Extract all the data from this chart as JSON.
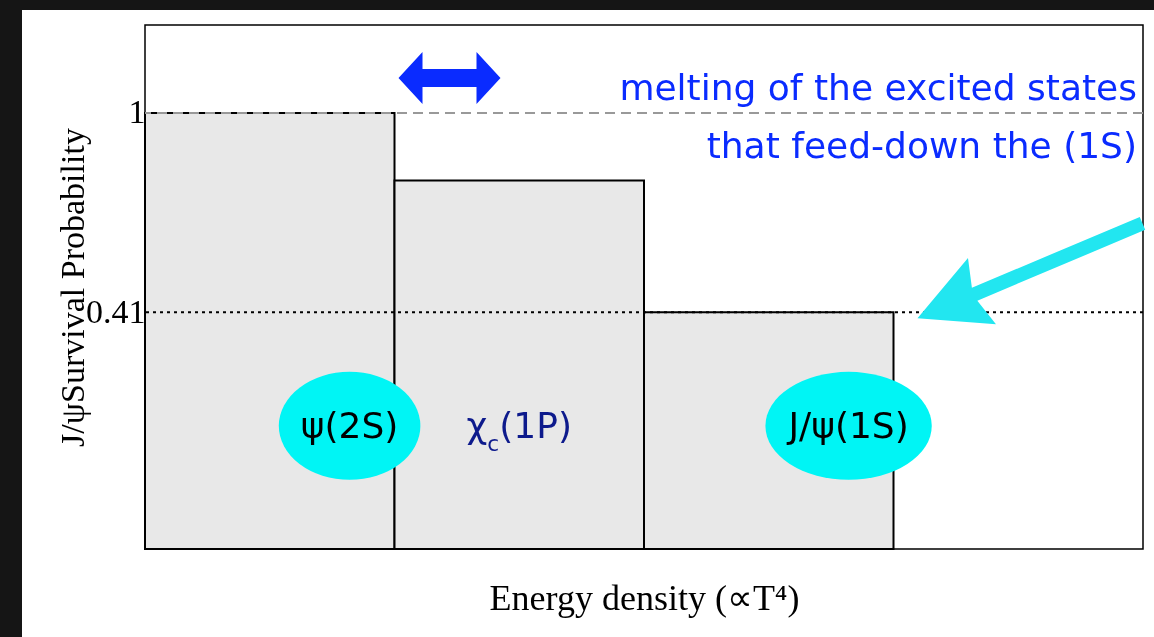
{
  "chart_data": {
    "type": "bar",
    "xlabel": "Energy density (∝T⁴)",
    "ylabel": "J/ψSurvival Probability",
    "categories": [
      null,
      null,
      null,
      null
    ],
    "base": [
      -0.29,
      -0.29,
      -0.29,
      null
    ],
    "values": [
      1.29,
      1.09,
      0.7,
      null
    ],
    "color": "#e8e8e8",
    "ylim": [
      -0.29,
      1.26
    ],
    "yticks": [
      1,
      0.41
    ],
    "tick_labels": "y",
    "ref_lines": [
      {
        "axis": "y",
        "value": 1,
        "color": "#999999",
        "line_style": "dashed"
      },
      {
        "axis": "y",
        "value": 0.41,
        "color": "#000000",
        "line_style": "dotted"
      }
    ],
    "annotations": [
      "melting of the excited states\nthat feed-down the (1S)",
      "ψ(2S)",
      "χ$_{c}$(1P)",
      "J/ψ(1S)"
    ]
  }
}
